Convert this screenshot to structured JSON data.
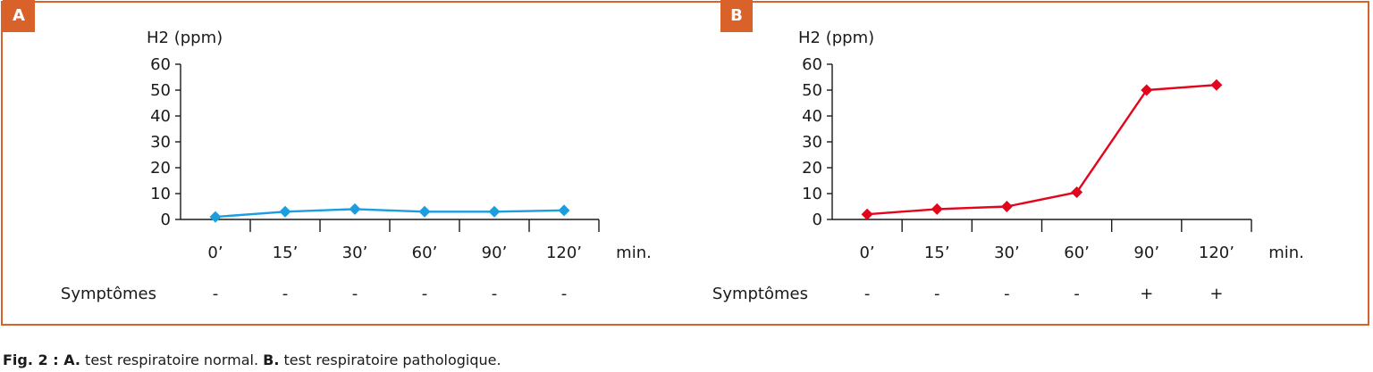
{
  "chart_data": [
    {
      "type": "line",
      "panel_label": "A",
      "ylabel": "H2 (ppm)",
      "xlabel": "min.",
      "categories": [
        "0’",
        "15’",
        "30’",
        "60’",
        "90’",
        "120’"
      ],
      "series": [
        {
          "values": [
            1,
            3,
            4,
            3,
            3,
            3.5
          ]
        }
      ],
      "ylim": [
        0,
        60
      ],
      "yticks": [
        0,
        10,
        20,
        30,
        40,
        50,
        60
      ],
      "row_label": "Symptômes",
      "symptoms": [
        "-",
        "-",
        "-",
        "-",
        "-",
        "-"
      ],
      "color": "#1a9ee0",
      "grid": false
    },
    {
      "type": "line",
      "panel_label": "B",
      "ylabel": "H2 (ppm)",
      "xlabel": "min.",
      "categories": [
        "0’",
        "15’",
        "30’",
        "60’",
        "90’",
        "120’"
      ],
      "series": [
        {
          "values": [
            2,
            4,
            5,
            10.5,
            50,
            52
          ]
        }
      ],
      "ylim": [
        0,
        60
      ],
      "yticks": [
        0,
        10,
        20,
        30,
        40,
        50,
        60
      ],
      "row_label": "Symptômes",
      "symptoms": [
        "-",
        "-",
        "-",
        "-",
        "+",
        "+"
      ],
      "color": "#e3051b",
      "grid": false
    }
  ],
  "caption": {
    "prefix": "Fig. 2 : ",
    "a_label": "A.",
    "a_text": " test respiratoire normal. ",
    "b_label": "B.",
    "b_text": " test respiratoire pathologique."
  }
}
